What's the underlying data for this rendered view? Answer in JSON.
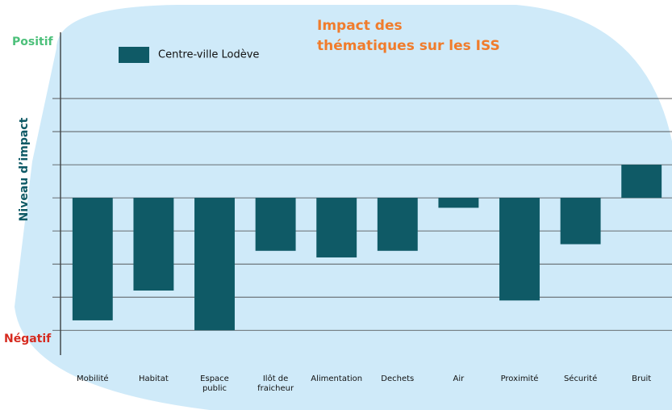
{
  "chart_data": {
    "type": "bar",
    "title": [
      "Impact des",
      "thématiques sur les ISS"
    ],
    "y_axis_label": "Niveau d’impact",
    "annotations": [
      "Positif",
      "Négatif"
    ],
    "categories": [
      "Mobilité",
      "Habitat",
      "Espace\npublic",
      "Ilôt de fraicheur",
      "Alimentation",
      "Dechets",
      "Air",
      "Proximité",
      "Sécurité",
      "Bruit"
    ],
    "series": [
      {
        "name": "Centre-ville Lodève",
        "color": "#0f5a66",
        "values": [
          -3.7,
          -2.8,
          -4,
          -1.6,
          -1.8,
          -1.6,
          -0.3,
          -3.1,
          -1.4,
          1
        ]
      }
    ],
    "ylim": [
      -4.75,
      5
    ],
    "yticks": [
      -4,
      -3,
      -2,
      -1,
      0,
      1,
      2,
      3
    ],
    "grid": true,
    "legend": "top-left"
  }
}
